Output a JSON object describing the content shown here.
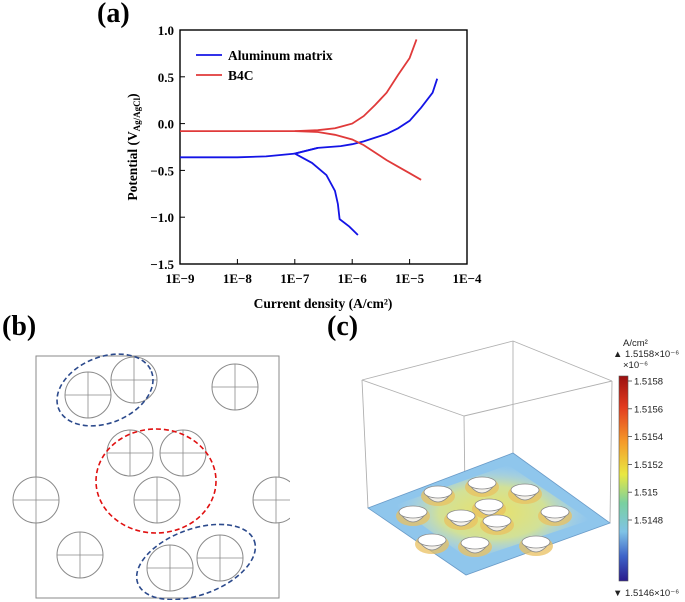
{
  "panel_a": {
    "label": "(a)"
  },
  "panel_b": {
    "label": "(b)"
  },
  "panel_c": {
    "label": "(c)",
    "colorbar": {
      "unit": "A/cm²",
      "max_label": "▲ 1.5158×10⁻⁶",
      "multiplier": "×10⁻⁶",
      "ticks": [
        "1.5158",
        "1.5156",
        "1.5154",
        "1.5152",
        "1.515",
        "1.5148"
      ],
      "min_label": "▼ 1.5146×10⁻⁶"
    }
  },
  "chart_data": {
    "type": "line",
    "title": "",
    "xlabel": "Current density (A/cm²)",
    "ylabel": "Potential (V",
    "ylabel_sub": "Ag/AgCl",
    "ylabel_close": ")",
    "xscale": "log",
    "xlim_exp": [
      -9,
      -4
    ],
    "ylim": [
      -1.5,
      1.0
    ],
    "x_tick_labels": [
      "1E−9",
      "1E−8",
      "1E−7",
      "1E−6",
      "1E−5",
      "1E−4"
    ],
    "y_tick_labels": [
      "−1.5",
      "−1.0",
      "−0.5",
      "0.0",
      "0.5",
      "1.0"
    ],
    "legend": {
      "position": "top-left",
      "entries": [
        "Aluminum matrix",
        "B4C"
      ]
    },
    "series": [
      {
        "name": "Aluminum matrix",
        "color": "#1414e6",
        "points_log10x_y": [
          [
            -9.0,
            -0.36
          ],
          [
            -8.0,
            -0.36
          ],
          [
            -7.5,
            -0.35
          ],
          [
            -7.0,
            -0.32
          ],
          [
            -6.8,
            -0.29
          ],
          [
            -6.6,
            -0.26
          ],
          [
            -6.4,
            -0.25
          ],
          [
            -6.2,
            -0.24
          ],
          [
            -6.0,
            -0.22
          ],
          [
            -5.8,
            -0.19
          ],
          [
            -5.6,
            -0.15
          ],
          [
            -5.4,
            -0.11
          ],
          [
            -5.2,
            -0.05
          ],
          [
            -5.0,
            0.03
          ],
          [
            -4.8,
            0.17
          ],
          [
            -4.6,
            0.33
          ],
          [
            -4.52,
            0.48
          ]
        ],
        "cathodic_log10x_y": [
          [
            -6.6,
            -0.26
          ],
          [
            -7.0,
            -0.32
          ],
          [
            -6.7,
            -0.42
          ],
          [
            -6.45,
            -0.55
          ],
          [
            -6.3,
            -0.72
          ],
          [
            -6.25,
            -0.86
          ],
          [
            -6.22,
            -1.02
          ],
          [
            -6.05,
            -1.1
          ],
          [
            -5.9,
            -1.19
          ]
        ]
      },
      {
        "name": "B4C",
        "color": "#e03a3a",
        "points_log10x_y": [
          [
            -9.0,
            -0.08
          ],
          [
            -8.0,
            -0.08
          ],
          [
            -7.0,
            -0.08
          ],
          [
            -6.6,
            -0.07
          ],
          [
            -6.3,
            -0.05
          ],
          [
            -6.0,
            0.0
          ],
          [
            -5.8,
            0.08
          ],
          [
            -5.6,
            0.2
          ],
          [
            -5.4,
            0.33
          ],
          [
            -5.2,
            0.52
          ],
          [
            -5.0,
            0.7
          ],
          [
            -4.88,
            0.9
          ]
        ],
        "cathodic_log10x_y": [
          [
            -7.0,
            -0.08
          ],
          [
            -6.6,
            -0.09
          ],
          [
            -6.3,
            -0.12
          ],
          [
            -6.0,
            -0.17
          ],
          [
            -5.8,
            -0.23
          ],
          [
            -5.6,
            -0.31
          ],
          [
            -5.4,
            -0.39
          ],
          [
            -5.2,
            -0.46
          ],
          [
            -5.0,
            -0.53
          ],
          [
            -4.8,
            -0.6
          ]
        ]
      }
    ]
  }
}
